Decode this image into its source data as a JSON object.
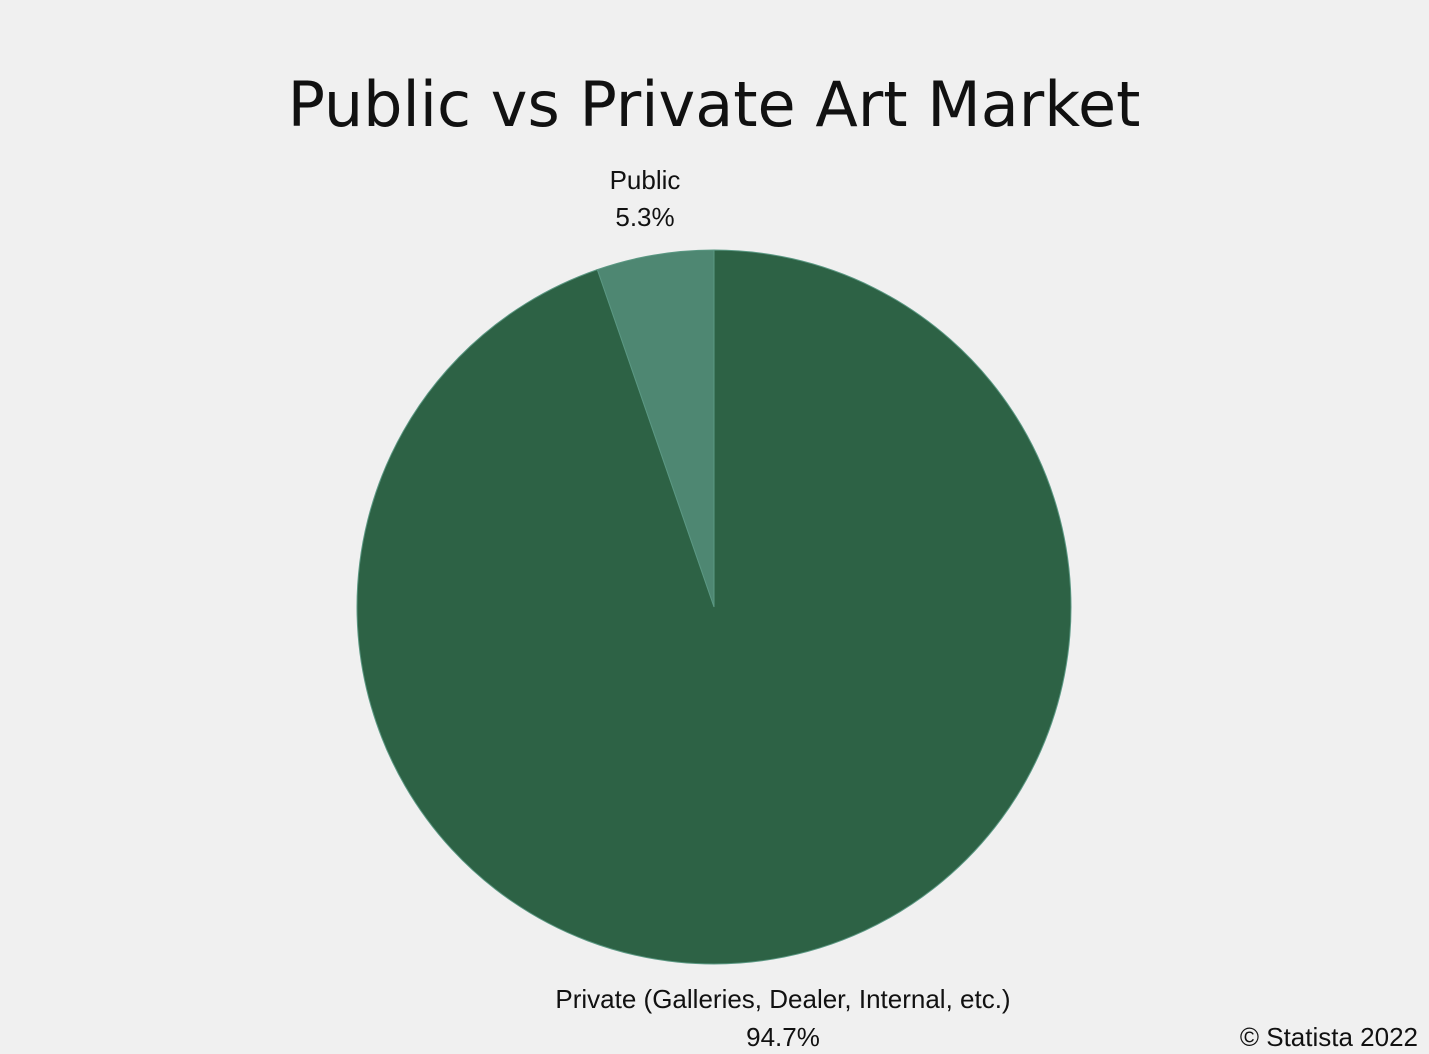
{
  "chart_data": {
    "type": "pie",
    "title": "Public vs Private Art Market",
    "slices": [
      {
        "label": "Public",
        "value_label": "5.3%",
        "value": 5.3,
        "color": "#4e8772"
      },
      {
        "label": "Private (Galleries, Dealer, Internal, etc.)",
        "value_label": "94.7%",
        "value": 94.7,
        "color": "#2d6245"
      }
    ],
    "start_angle": "12 o'clock",
    "direction": "counterclockwise"
  },
  "footer": {
    "copyright": "© Statista 2022"
  }
}
